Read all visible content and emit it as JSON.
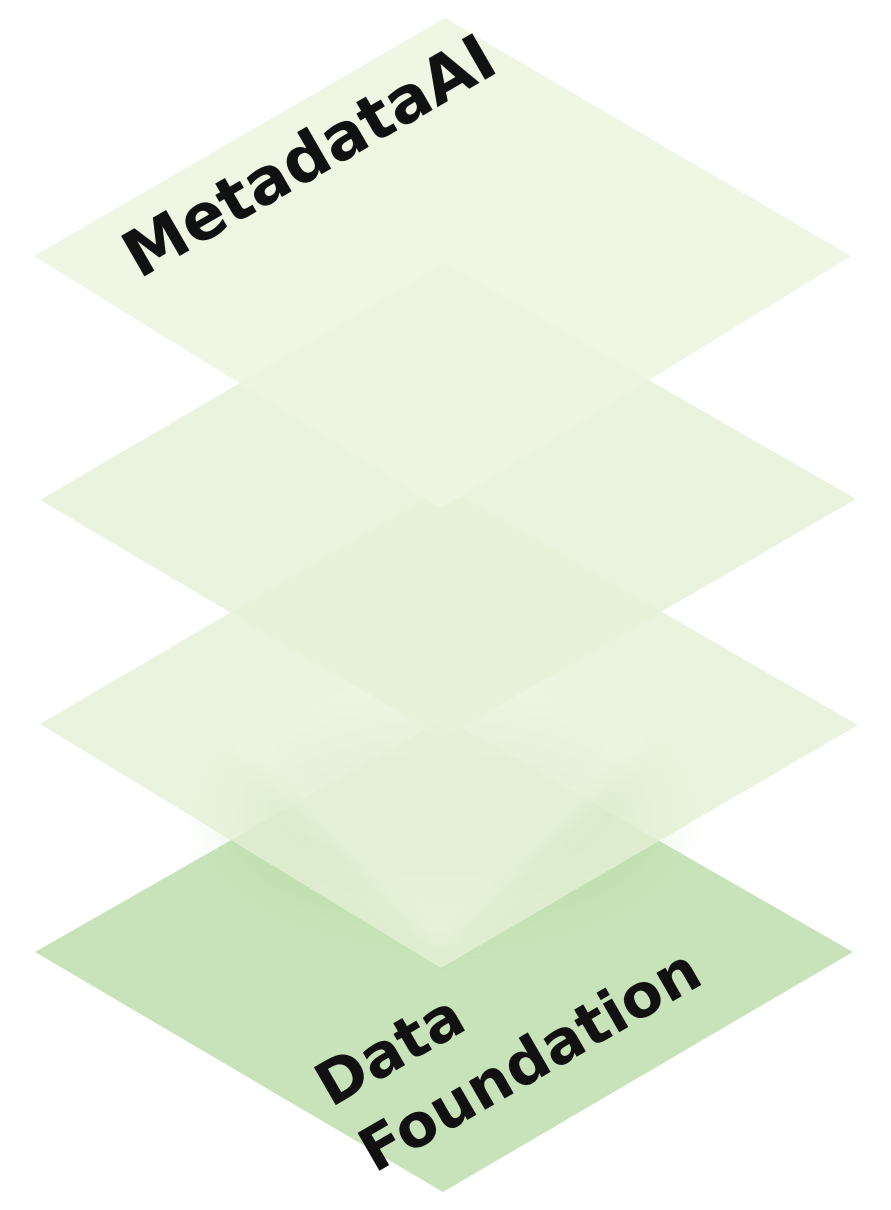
{
  "diagram": {
    "top_label": "MetadataAI",
    "bottom_label_line1": "Data",
    "bottom_label_line2": "Foundation"
  },
  "colors": {
    "top_layer": "#edf5e1",
    "middle_layers": "#e9f3dc",
    "bottom_layer": "#c8e3b9",
    "glow": "#b5d9a5",
    "text": "#111111"
  }
}
